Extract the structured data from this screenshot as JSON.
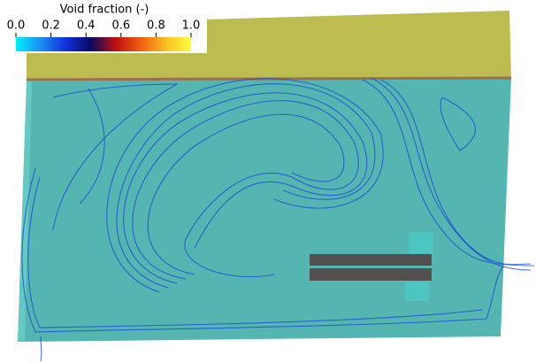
{
  "colorbar": {
    "title": "Void fraction (-)",
    "range": [
      0,
      1
    ],
    "ticks": [
      {
        "value": 0,
        "label": "0.0"
      },
      {
        "value": 0.2,
        "label": "0.2"
      },
      {
        "value": 0.4,
        "label": "0.4"
      },
      {
        "value": 0.6,
        "label": "0.6"
      },
      {
        "value": 0.8,
        "label": "0.8"
      },
      {
        "value": 1,
        "label": "1.0"
      }
    ],
    "colors": [
      "#00f0ff",
      "#1a8cf0",
      "#1030d8",
      "#0a0a60",
      "#c01010",
      "#f06010",
      "#f8c020",
      "#ffff40"
    ]
  }
}
